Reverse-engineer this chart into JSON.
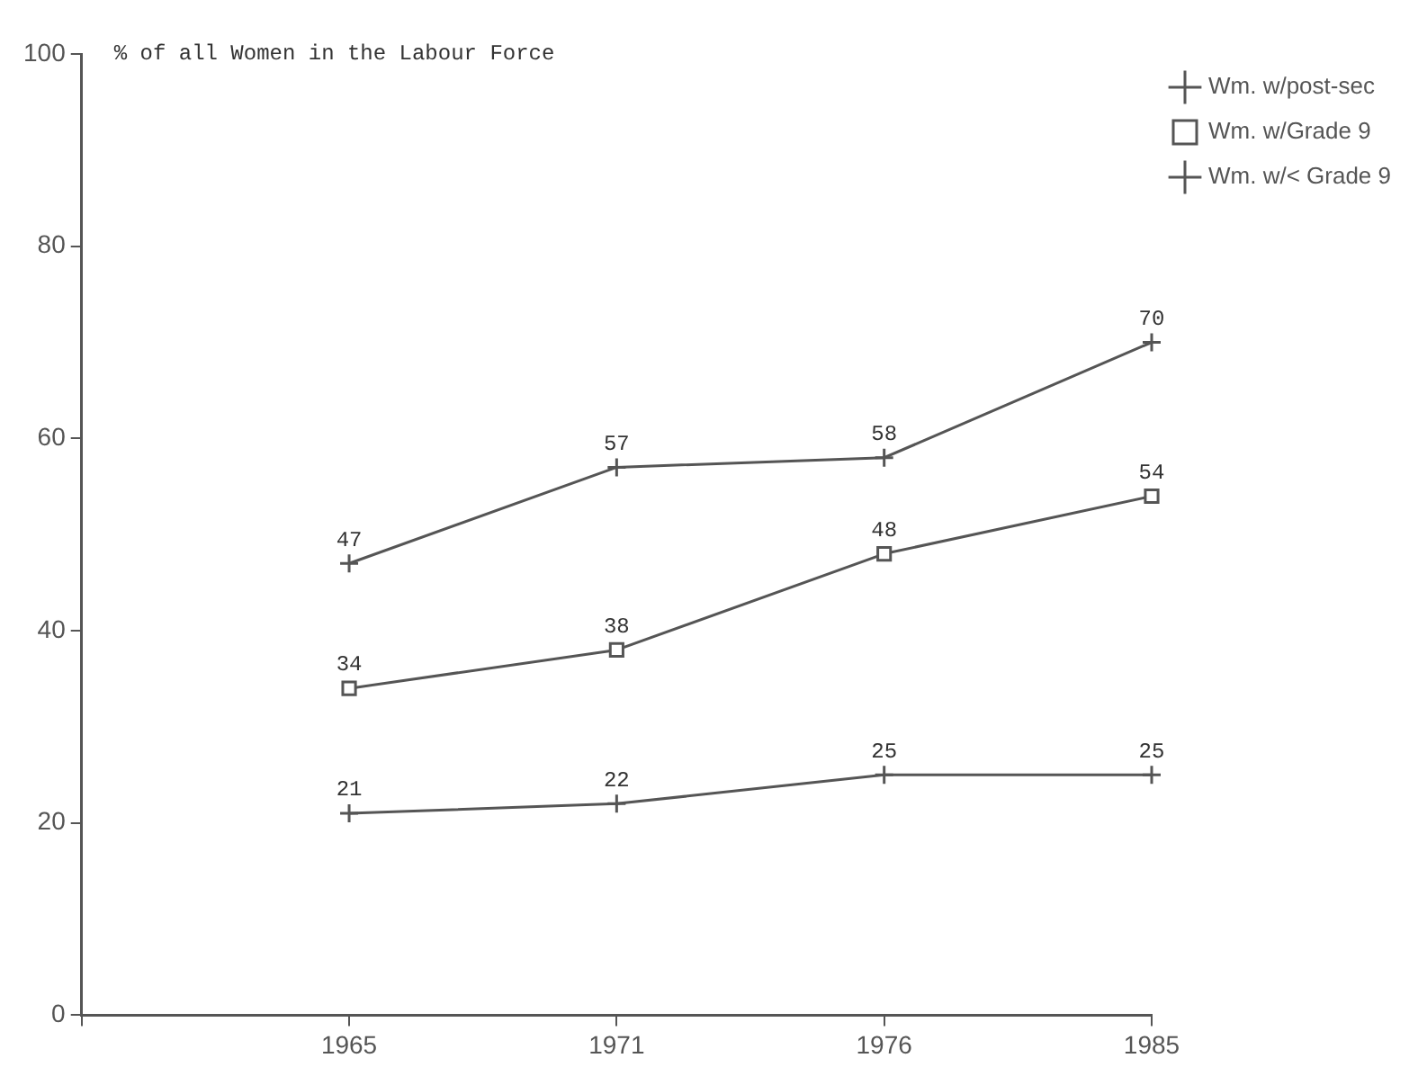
{
  "chart_data": {
    "type": "line",
    "ylabel": "% of all Women in the Labour Force",
    "categories": [
      null,
      "1965",
      "1971",
      "1976",
      "1985"
    ],
    "series": [
      {
        "name": "Wm. w/post-sec",
        "color": "#555555",
        "marker": "cross",
        "values": [
          null,
          47,
          57,
          58,
          70
        ]
      },
      {
        "name": "Wm. w/Grade 9",
        "color": "#555555",
        "marker": "square",
        "values": [
          null,
          34,
          38,
          48,
          54
        ]
      },
      {
        "name": "Wm. w/< Grade 9",
        "color": "#555555",
        "marker": "cross",
        "values": [
          null,
          21,
          22,
          25,
          25
        ]
      }
    ],
    "ylim": [
      0,
      100
    ],
    "yticks": [
      0,
      20,
      40,
      60,
      80,
      100
    ],
    "grid": false,
    "legend": "top right",
    "data_labels": true,
    "line_style": "solid"
  }
}
